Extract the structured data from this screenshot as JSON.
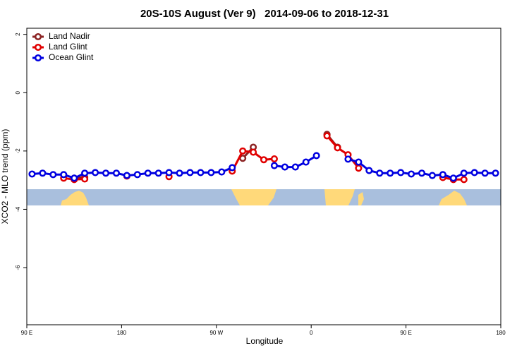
{
  "chart_data": {
    "type": "line",
    "title": "20S-10S August (Ver 9)   2014-09-06 to 2018-12-31",
    "x_label": "Longitude",
    "y_label": "XCO2 - MLO trend (ppm)",
    "x": [
      95,
      105,
      115,
      125,
      135,
      145,
      155,
      165,
      175,
      185,
      195,
      205,
      215,
      225,
      235,
      245,
      255,
      265,
      275,
      285,
      295,
      305,
      315,
      325,
      335,
      345,
      355,
      365,
      375,
      385,
      395,
      405,
      415,
      425,
      435,
      445,
      455,
      465,
      475,
      485,
      495,
      505,
      515,
      525,
      535
    ],
    "xlim": [
      90,
      540
    ],
    "xticks": [
      {
        "value": 90,
        "label": "90 E"
      },
      180,
      {
        "value": 270,
        "label": "90 W"
      },
      {
        "value": 360,
        "label": "0"
      },
      {
        "value": 450,
        "label": "90 E"
      },
      {
        "value": 540,
        "label": "180"
      }
    ],
    "ylim": [
      -7.96,
      2.21
    ],
    "yticks": [
      2,
      0,
      -2,
      -4,
      -6
    ],
    "legend": "top-left",
    "series": [
      {
        "name": "Land Nadir",
        "color": "#8b2323",
        "values": [
          null,
          null,
          null,
          null,
          -2.93,
          -2.9,
          null,
          null,
          null,
          null,
          null,
          null,
          null,
          null,
          null,
          null,
          null,
          null,
          null,
          null,
          -2.25,
          -1.87,
          null,
          null,
          null,
          null,
          null,
          null,
          -1.43,
          -1.87,
          null,
          null,
          null,
          null,
          null,
          null,
          null,
          null,
          null,
          null,
          -2.95,
          null,
          null,
          null,
          null
        ]
      },
      {
        "name": "Land Glint",
        "color": "#e00000",
        "values": [
          null,
          null,
          null,
          -2.93,
          -2.98,
          -2.96,
          null,
          null,
          null,
          -2.86,
          null,
          null,
          null,
          -2.88,
          null,
          null,
          null,
          null,
          null,
          -2.69,
          -2.0,
          -2.04,
          -2.3,
          -2.27,
          null,
          null,
          null,
          null,
          -1.48,
          -1.89,
          -2.13,
          -2.59,
          null,
          null,
          null,
          null,
          null,
          null,
          null,
          -2.91,
          -2.98,
          -2.98,
          null,
          null,
          null
        ]
      },
      {
        "name": "Ocean Glint",
        "color": "#0000e0",
        "values": [
          -2.79,
          -2.76,
          -2.81,
          -2.81,
          -2.93,
          -2.76,
          -2.74,
          -2.76,
          -2.76,
          -2.84,
          -2.81,
          -2.76,
          -2.76,
          -2.74,
          -2.76,
          -2.74,
          -2.74,
          -2.74,
          -2.72,
          -2.57,
          null,
          null,
          null,
          -2.5,
          -2.55,
          -2.55,
          -2.38,
          -2.16,
          null,
          null,
          -2.28,
          -2.38,
          -2.67,
          -2.76,
          -2.76,
          -2.74,
          -2.79,
          -2.76,
          -2.84,
          -2.81,
          -2.93,
          -2.76,
          -2.74,
          -2.76,
          -2.76
        ]
      }
    ]
  }
}
